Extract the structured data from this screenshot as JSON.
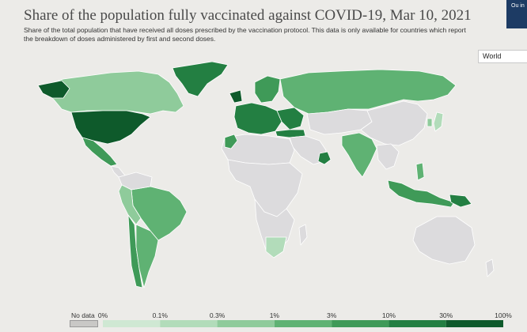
{
  "header": {
    "title": "Share of the population fully vaccinated against COVID-19, Mar 10, 2021",
    "subtitle": "Share of the total population that have received all doses prescribed by the vaccination protocol. This data is only available for countries which report the breakdown of doses administered by first and second doses.",
    "logo_text": "Ou in"
  },
  "controls": {
    "region_select": "World"
  },
  "colors": {
    "no_data": "#dcdbdd",
    "bins": [
      "#e3f1e6",
      "#cfe8d3",
      "#b2dcba",
      "#8fcb9b",
      "#5fb273",
      "#3f9a58",
      "#237f42",
      "#0e5a2b"
    ]
  },
  "legend": {
    "no_data_label": "No data",
    "ticks": [
      "0%",
      "0.1%",
      "0.3%",
      "1%",
      "3%",
      "10%",
      "30%",
      "100%"
    ]
  }
}
